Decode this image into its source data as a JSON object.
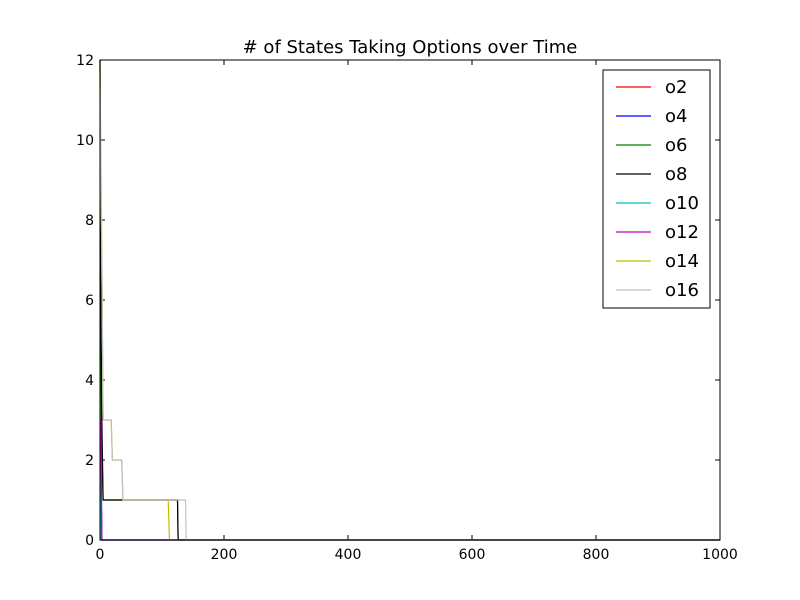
{
  "chart_data": {
    "type": "line",
    "title": "# of States Taking Options over Time",
    "xlabel": "",
    "ylabel": "",
    "xlim": [
      0,
      1000
    ],
    "ylim": [
      0,
      12
    ],
    "x_ticks": [
      0,
      200,
      400,
      600,
      800,
      1000
    ],
    "y_ticks": [
      0,
      2,
      4,
      6,
      8,
      10,
      12
    ],
    "grid": false,
    "legend_position": "top-right",
    "series": [
      {
        "name": "o2",
        "color": "#ff0000",
        "points": [
          [
            0,
            3
          ],
          [
            1,
            3
          ],
          [
            2,
            0
          ],
          [
            1000,
            0
          ]
        ]
      },
      {
        "name": "o4",
        "color": "#0000ff",
        "points": [
          [
            0,
            3
          ],
          [
            1,
            3
          ],
          [
            3,
            0
          ],
          [
            1000,
            0
          ]
        ]
      },
      {
        "name": "o6",
        "color": "#008000",
        "points": [
          [
            0,
            12
          ],
          [
            1,
            7
          ],
          [
            2,
            3
          ],
          [
            5,
            1
          ],
          [
            125,
            1
          ],
          [
            126,
            0
          ],
          [
            1000,
            0
          ]
        ]
      },
      {
        "name": "o8",
        "color": "#000000",
        "points": [
          [
            0,
            12
          ],
          [
            1,
            7
          ],
          [
            3,
            3
          ],
          [
            5,
            1
          ],
          [
            125,
            1
          ],
          [
            126,
            0
          ],
          [
            1000,
            0
          ]
        ]
      },
      {
        "name": "o10",
        "color": "#00bfbf",
        "points": [
          [
            0,
            3
          ],
          [
            1,
            3
          ],
          [
            2,
            0
          ],
          [
            1000,
            0
          ]
        ]
      },
      {
        "name": "o12",
        "color": "#bf00bf",
        "points": [
          [
            0,
            3
          ],
          [
            1,
            3
          ],
          [
            3,
            0
          ],
          [
            1000,
            0
          ]
        ]
      },
      {
        "name": "o14",
        "color": "#bfbf00",
        "points": [
          [
            0,
            12
          ],
          [
            1,
            10
          ],
          [
            3,
            7
          ],
          [
            5,
            3
          ],
          [
            18,
            3
          ],
          [
            20,
            2
          ],
          [
            35,
            2
          ],
          [
            37,
            1
          ],
          [
            110,
            1
          ],
          [
            112,
            0
          ],
          [
            1000,
            0
          ]
        ]
      },
      {
        "name": "o16",
        "color": "#c0c0c0",
        "points": [
          [
            0,
            12
          ],
          [
            1,
            10
          ],
          [
            3,
            7
          ],
          [
            5,
            3
          ],
          [
            18,
            3
          ],
          [
            20,
            2
          ],
          [
            35,
            2
          ],
          [
            37,
            1
          ],
          [
            138,
            1
          ],
          [
            139,
            0
          ],
          [
            1000,
            0
          ]
        ]
      }
    ]
  }
}
